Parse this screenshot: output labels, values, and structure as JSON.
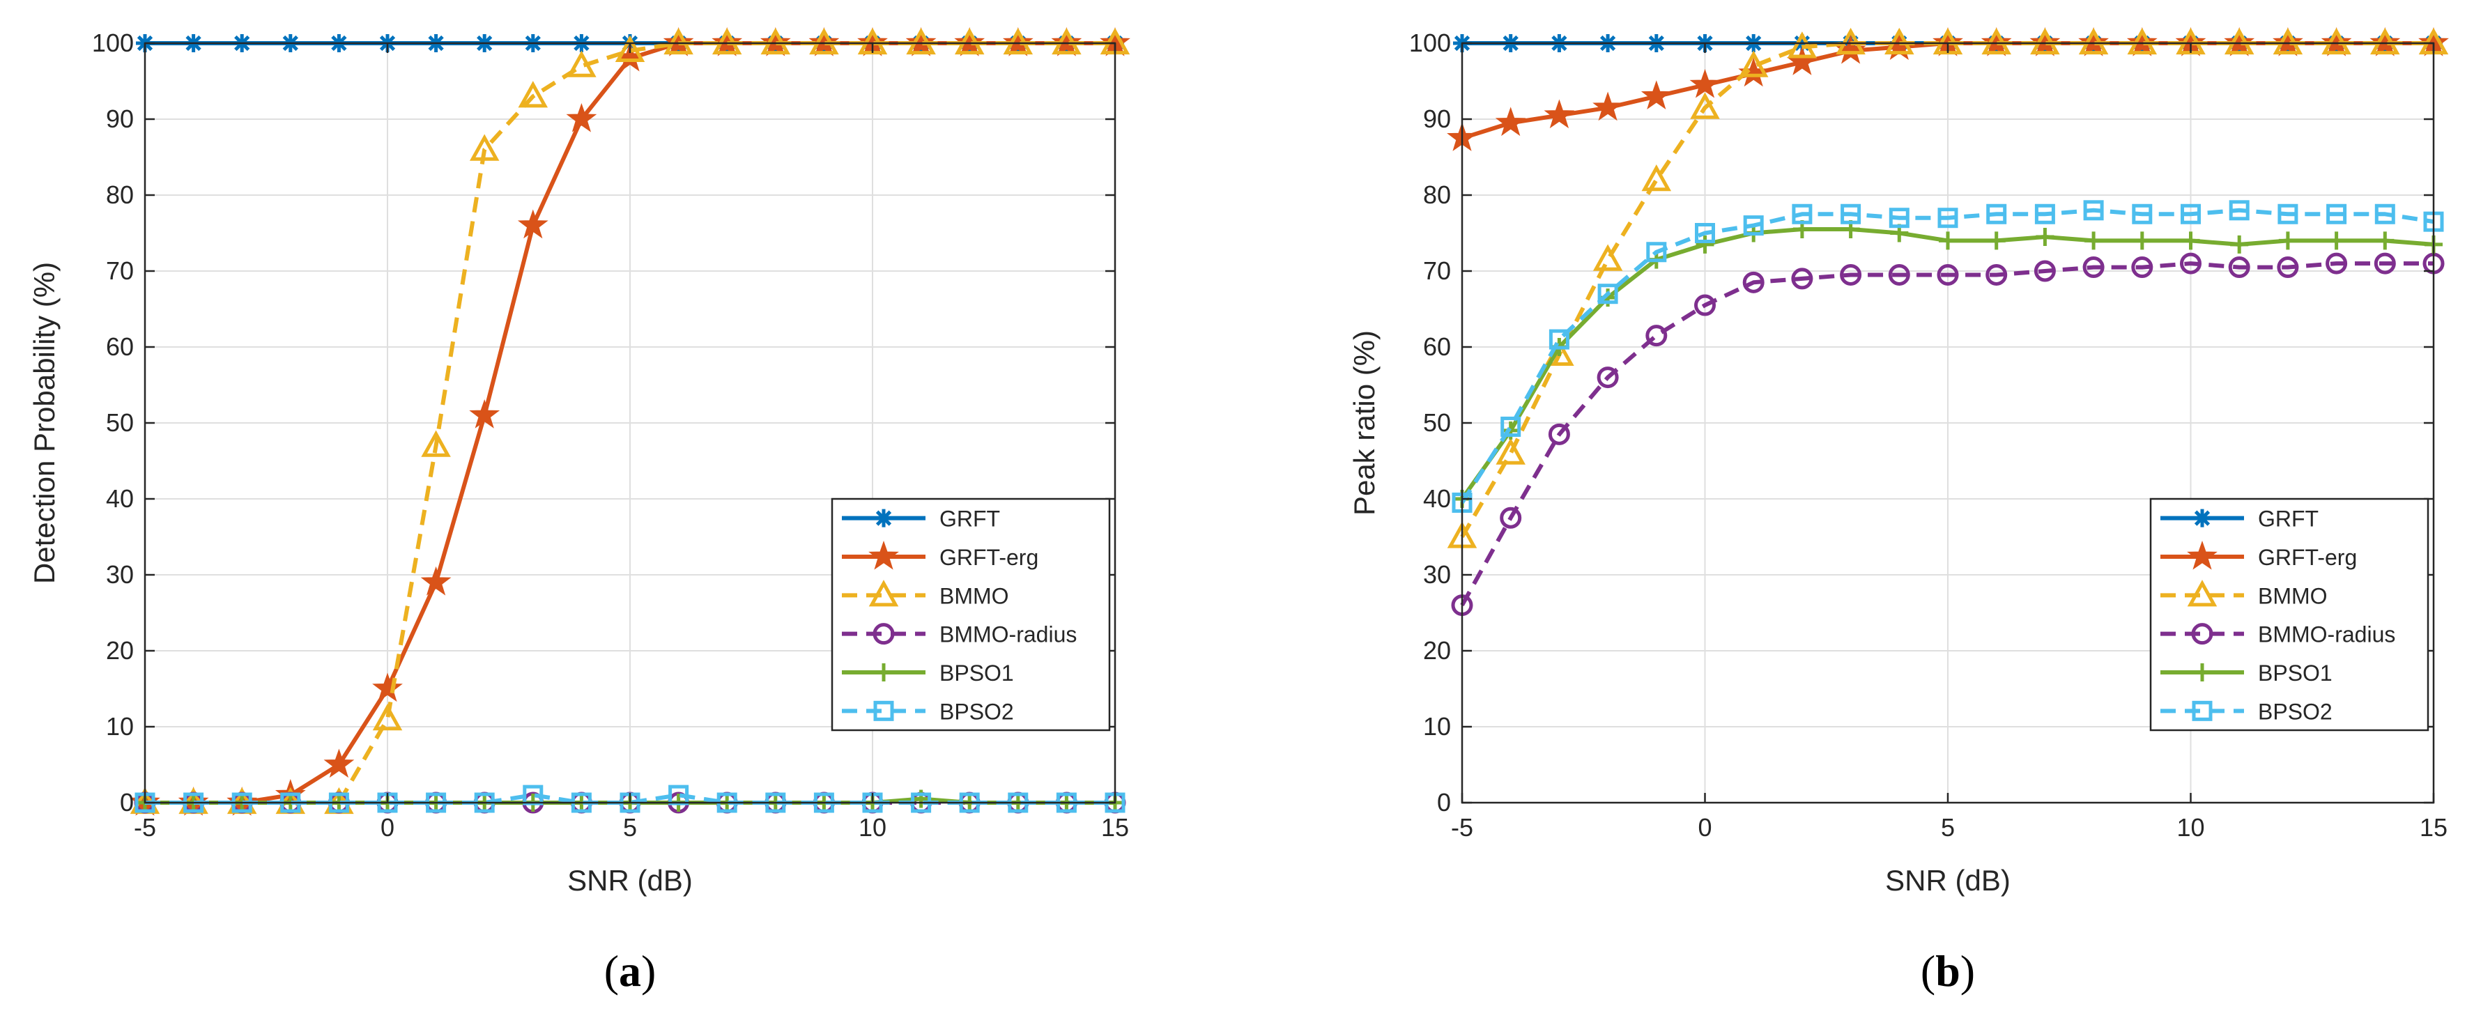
{
  "chart_data": [
    {
      "type": "line",
      "panel_label": "a",
      "xlabel": "SNR (dB)",
      "ylabel": "Detection Probability (%)",
      "xlim": [
        -5,
        15
      ],
      "ylim": [
        0,
        100
      ],
      "xticks": [
        -5,
        0,
        5,
        10,
        15
      ],
      "yticks": [
        0,
        10,
        20,
        30,
        40,
        50,
        60,
        70,
        80,
        90,
        100
      ],
      "grid": true,
      "legend_position": "lower-right",
      "x": [
        -5,
        -4,
        -3,
        -2,
        -1,
        0,
        1,
        2,
        3,
        4,
        5,
        6,
        7,
        8,
        9,
        10,
        11,
        12,
        13,
        14,
        15
      ],
      "series": [
        {
          "name": "GRFT",
          "color": "#0072BD",
          "marker": "asterisk",
          "dash": "solid",
          "values": [
            100,
            100,
            100,
            100,
            100,
            100,
            100,
            100,
            100,
            100,
            100,
            100,
            100,
            100,
            100,
            100,
            100,
            100,
            100,
            100,
            100
          ]
        },
        {
          "name": "GRFT-erg",
          "color": "#D95319",
          "marker": "star",
          "dash": "solid",
          "values": [
            0,
            0,
            0,
            1,
            5,
            15,
            29,
            51,
            76,
            90,
            98,
            100,
            100,
            100,
            100,
            100,
            100,
            100,
            100,
            100,
            100
          ]
        },
        {
          "name": "BMMO",
          "color": "#EDB120",
          "marker": "triangle",
          "dash": "dashed",
          "values": [
            0,
            0,
            0,
            0,
            0,
            11,
            47,
            86,
            93,
            97,
            99,
            100,
            100,
            100,
            100,
            100,
            100,
            100,
            100,
            100,
            100
          ]
        },
        {
          "name": "BMMO-radius",
          "color": "#7E2F8E",
          "marker": "circle",
          "dash": "dashed",
          "values": [
            0,
            0,
            0,
            0,
            0,
            0,
            0,
            0,
            0,
            0,
            0,
            0,
            0,
            0,
            0,
            0,
            0,
            0,
            0,
            0,
            0
          ]
        },
        {
          "name": "BPSO1",
          "color": "#77AC30",
          "marker": "plus",
          "dash": "solid",
          "values": [
            0,
            0,
            0,
            0,
            0,
            0,
            0,
            0,
            0,
            0,
            0,
            0,
            0,
            0,
            0,
            0,
            0.5,
            0,
            0,
            0,
            0
          ]
        },
        {
          "name": "BPSO2",
          "color": "#4DBEEE",
          "marker": "square",
          "dash": "dashed",
          "values": [
            0,
            0,
            0,
            0,
            0,
            0,
            0,
            0,
            1,
            0,
            0,
            1,
            0,
            0,
            0,
            0,
            0,
            0,
            0,
            0,
            0
          ]
        }
      ]
    },
    {
      "type": "line",
      "panel_label": "b",
      "xlabel": "SNR (dB)",
      "ylabel": "Peak ratio (%)",
      "xlim": [
        -5,
        15
      ],
      "ylim": [
        0,
        100
      ],
      "xticks": [
        -5,
        0,
        5,
        10,
        15
      ],
      "yticks": [
        0,
        10,
        20,
        30,
        40,
        50,
        60,
        70,
        80,
        90,
        100
      ],
      "grid": true,
      "legend_position": "lower-right",
      "x": [
        -5,
        -4,
        -3,
        -2,
        -1,
        0,
        1,
        2,
        3,
        4,
        5,
        6,
        7,
        8,
        9,
        10,
        11,
        12,
        13,
        14,
        15
      ],
      "series": [
        {
          "name": "GRFT",
          "color": "#0072BD",
          "marker": "asterisk",
          "dash": "solid",
          "values": [
            100,
            100,
            100,
            100,
            100,
            100,
            100,
            100,
            100,
            100,
            100,
            100,
            100,
            100,
            100,
            100,
            100,
            100,
            100,
            100,
            100
          ]
        },
        {
          "name": "GRFT-erg",
          "color": "#D95319",
          "marker": "star",
          "dash": "solid",
          "values": [
            87.5,
            89.5,
            90.5,
            91.5,
            93,
            94.5,
            96,
            97.5,
            99,
            99.5,
            100,
            100,
            100,
            100,
            100,
            100,
            100,
            100,
            100,
            100,
            100
          ]
        },
        {
          "name": "BMMO",
          "color": "#EDB120",
          "marker": "triangle",
          "dash": "dashed",
          "values": [
            35,
            46,
            59,
            71.5,
            82,
            91.5,
            97,
            99.5,
            100,
            100,
            100,
            100,
            100,
            100,
            100,
            100,
            100,
            100,
            100,
            100,
            100
          ]
        },
        {
          "name": "BMMO-radius",
          "color": "#7E2F8E",
          "marker": "circle",
          "dash": "dashed",
          "values": [
            26,
            37.5,
            48.5,
            56,
            61.5,
            65.5,
            68.5,
            69,
            69.5,
            69.5,
            69.5,
            69.5,
            70,
            70.5,
            70.5,
            71,
            70.5,
            70.5,
            71,
            71,
            71
          ]
        },
        {
          "name": "BPSO1",
          "color": "#77AC30",
          "marker": "plus",
          "dash": "solid",
          "values": [
            40,
            49,
            60,
            66.5,
            71.5,
            73.5,
            75,
            75.5,
            75.5,
            75,
            74,
            74,
            74.5,
            74,
            74,
            74,
            73.5,
            74,
            74,
            74,
            73.5
          ]
        },
        {
          "name": "BPSO2",
          "color": "#4DBEEE",
          "marker": "square",
          "dash": "dashed",
          "values": [
            39.5,
            49.5,
            61,
            67,
            72.5,
            75,
            76,
            77.5,
            77.5,
            77,
            77,
            77.5,
            77.5,
            78,
            77.5,
            77.5,
            78,
            77.5,
            77.5,
            77.5,
            76.5
          ]
        }
      ]
    }
  ]
}
